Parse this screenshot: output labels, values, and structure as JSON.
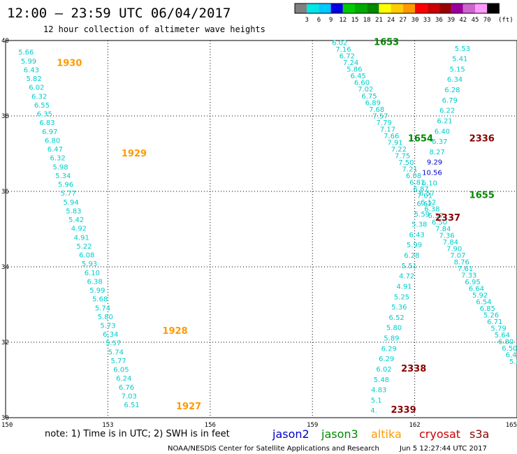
{
  "header": {
    "title": "12:00 – 23:59 UTC 06/04/2017",
    "subtitle": "12 hour collection of altimeter wave heights"
  },
  "scale": {
    "unit": "(ft)",
    "labels": [
      "3",
      "6",
      "9",
      "12",
      "15",
      "18",
      "21",
      "24",
      "27",
      "30",
      "33",
      "36",
      "39",
      "42",
      "45",
      "70"
    ],
    "colors": [
      "#808080",
      "#00e5e5",
      "#00c8ff",
      "#0000e0",
      "#00cc00",
      "#00aa00",
      "#008800",
      "#ffff00",
      "#ffcc00",
      "#ff9900",
      "#ff0000",
      "#cc0000",
      "#990000",
      "#990099",
      "#cc66cc",
      "#ff99ff",
      "#000000"
    ]
  },
  "footer": {
    "note": "note: 1) Time is in UTC; 2) SWH is in feet",
    "credit": "NOAA/NESDIS Center for Satellite Applications and Research",
    "timestamp": "Jun  5 12:27:44 UTC 2017"
  },
  "legend": [
    {
      "name": "jason2",
      "color": "#0000cc"
    },
    {
      "name": "jason3",
      "color": "#008800"
    },
    {
      "name": "altika",
      "color": "#ff9900"
    },
    {
      "name": "cryosat",
      "color": "#cc0000"
    },
    {
      "name": "s3a",
      "color": "#880000"
    }
  ],
  "chart_data": {
    "type": "scatter",
    "xlim": [
      150,
      165
    ],
    "ylim": [
      30,
      40
    ],
    "xticks": [
      "150",
      "153",
      "156",
      "159",
      "162",
      "165"
    ],
    "yticks": [
      "30",
      "32",
      "34",
      "36",
      "38",
      "40"
    ],
    "grid": true,
    "series": [
      {
        "name": "altika",
        "color": "#00cccc",
        "label_color": "#ff9900",
        "start": [
          150.6,
          39.7
        ],
        "end": [
          153.7,
          30.35
        ],
        "times": [
          {
            "text": "1930",
            "at": [
              151.5,
              39.4
            ]
          },
          {
            "text": "1929",
            "at": [
              153.4,
              37.0
            ]
          },
          {
            "text": "1928",
            "at": [
              154.6,
              32.3
            ]
          },
          {
            "text": "1927",
            "at": [
              155.0,
              30.3
            ]
          }
        ],
        "values": [
          "5.66",
          "5.99",
          "6.43",
          "5.82",
          "6.02",
          "6.32",
          "6.55",
          "6.35",
          "6.83",
          "6.97",
          "6.80",
          "6.47",
          "6.32",
          "5.98",
          "5.34",
          "5.96",
          "5.77",
          "5.94",
          "5.83",
          "5.42",
          "4.92",
          "4.91",
          "5.22",
          "6.08",
          "5.93",
          "6.10",
          "6.38",
          "5.99",
          "5.68",
          "5.74",
          "5.80",
          "5.73",
          "6.34",
          "5.57",
          "5.74",
          "5.77",
          "6.05",
          "6.24",
          "6.76",
          "7.03",
          "6.51"
        ]
      },
      {
        "name": "jason3",
        "color": "#00cccc",
        "label_color": "#008800",
        "start": [
          159.8,
          39.95
        ],
        "end": [
          165.0,
          31.5
        ],
        "times": [
          {
            "text": "1653",
            "at": [
              160.8,
              39.95
            ]
          },
          {
            "text": "1654",
            "at": [
              161.8,
              37.4
            ]
          },
          {
            "text": "1655",
            "at": [
              163.6,
              35.9
            ]
          },
          {
            "text": "16",
            "at": [
              165.0,
              32.7
            ]
          }
        ],
        "values": [
          "6.02",
          "7.16",
          "6.72",
          "7.24",
          "5.86",
          "6.45",
          "6.60",
          "7.02",
          "6.75",
          "6.89",
          "7.68",
          "7.57",
          "7.79",
          "7.17",
          "7.66",
          "7.91",
          "7.22",
          "7.75",
          "7.50",
          "7.21",
          "6.08",
          "6.81",
          "6.87",
          "7.01",
          "6.12",
          "6.38",
          "6.37",
          "6.50",
          "7.84",
          "7.36",
          "7.84",
          "7.90",
          "7.07",
          "8.76",
          "7.61",
          "7.33",
          "6.95",
          "6.64",
          "5.92",
          "6.54",
          "6.85",
          "5.26",
          "6.71",
          "5.79",
          "5.64",
          "6.80",
          "6.50",
          "6.46",
          "5.64"
        ]
      },
      {
        "name": "cryosat",
        "color": "#00cccc",
        "label_color": "#880000",
        "start": [
          163.4,
          39.8
        ],
        "end": [
          160.8,
          30.2
        ],
        "times": [
          {
            "text": "2336",
            "at": [
              163.6,
              37.4
            ]
          },
          {
            "text": "2337",
            "at": [
              162.6,
              35.3
            ]
          },
          {
            "text": "2338",
            "at": [
              161.6,
              31.3
            ]
          },
          {
            "text": "2339",
            "at": [
              161.3,
              30.2
            ]
          }
        ],
        "values": [
          "5.53",
          "5.41",
          "5.15",
          "6.34",
          "6.28",
          "6.79",
          "6.22",
          "6.21",
          "6.40",
          "6.37",
          "8.27",
          "9.29",
          "10.56",
          "6.10",
          "6.57",
          "6.62",
          "5.59",
          "5.38",
          "6.43",
          "5.99",
          "6.28",
          "5.51",
          "4.72",
          "4.91",
          "5.25",
          "5.36",
          "6.52",
          "5.80",
          "5.89",
          "6.29",
          "6.29",
          "6.02",
          "5.48",
          "4.83",
          "5.1",
          "4."
        ]
      }
    ]
  }
}
